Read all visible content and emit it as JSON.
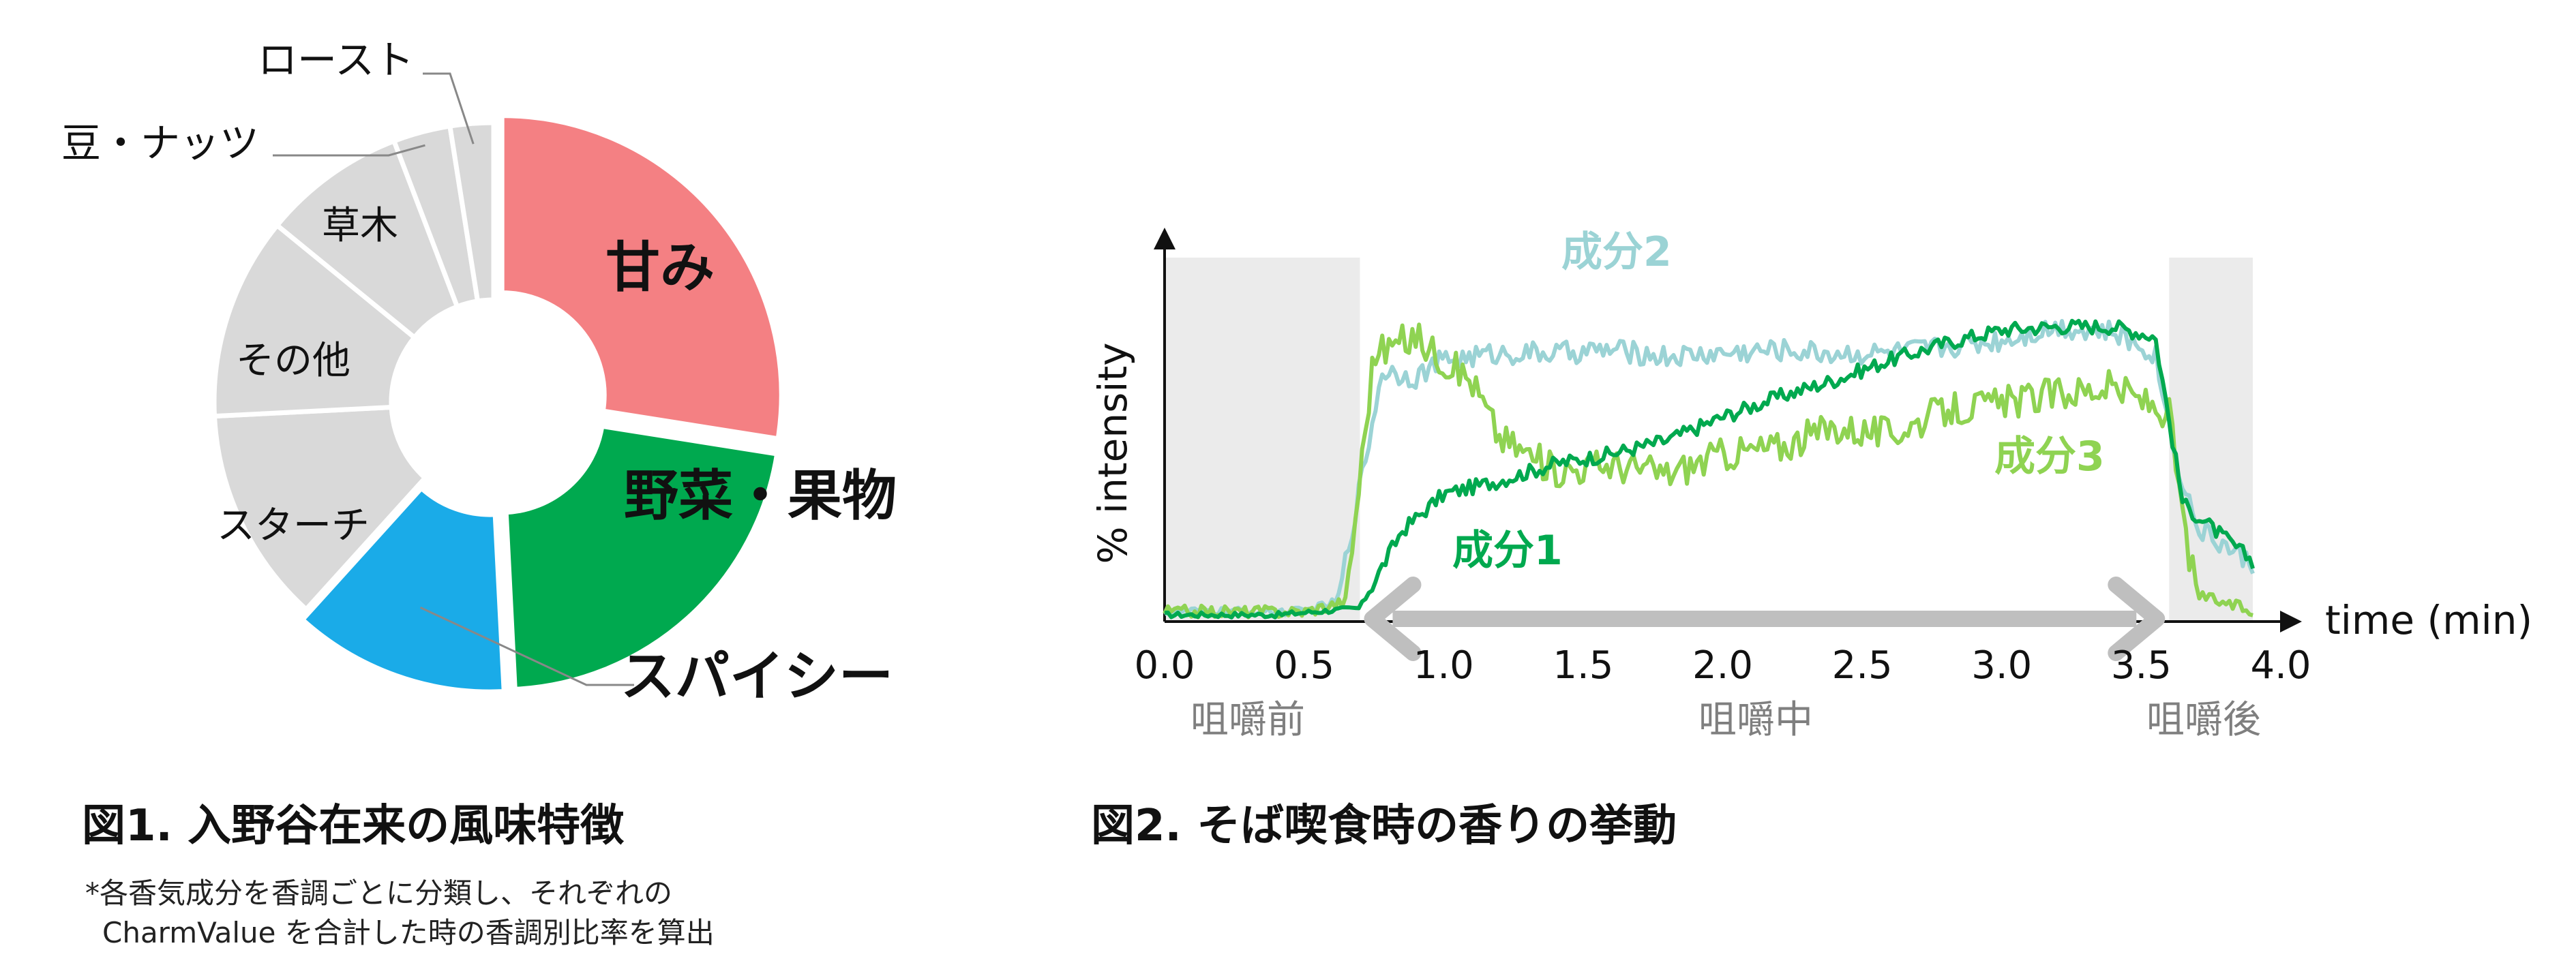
{
  "figure1": {
    "caption": "図1. 入野谷在来の風味特徴",
    "note_line1": "*各香気成分を香調ごとに分類し、それぞれの",
    "note_line2": "CharmValue を合計した時の香調別比率を算出"
  },
  "figure2": {
    "caption": "図2. そば喫食時の香りの挙動"
  },
  "colors": {
    "sweet": "#f48083",
    "veg_fruit": "#00a94f",
    "spicy": "#1aabe8",
    "grey": "#d9d9d9",
    "comp1": "#00a94f",
    "comp2": "#9bd3d5",
    "comp3": "#8fd352",
    "arrow": "#bfbfbf",
    "shade": "#ebebeb"
  },
  "chart_data": [
    {
      "type": "pie",
      "categories": [
        "甘み",
        "野菜・果物",
        "スパイシー",
        "スターチ",
        "その他",
        "草木",
        "豆・ナッツ",
        "ロースト"
      ],
      "values": [
        27.5,
        21.7,
        12.5,
        12.5,
        11.7,
        8.3,
        3.3,
        2.5
      ],
      "exploded": [
        "甘み",
        "野菜・果物",
        "スパイシー"
      ],
      "donut": true
    },
    {
      "type": "line",
      "ylabel": "% intensity",
      "xlabel": "time (min)",
      "xlim": [
        0,
        4
      ],
      "ylim": [
        0,
        100
      ],
      "xticks": [
        "0.0",
        "0.5",
        "1.0",
        "1.5",
        "2.0",
        "2.5",
        "3.0",
        "3.5",
        "4.0"
      ],
      "phases": [
        {
          "label": "咀嚼前",
          "range": [
            0,
            0.7
          ]
        },
        {
          "label": "咀嚼中",
          "range": [
            0.7,
            3.6
          ]
        },
        {
          "label": "咀嚼後",
          "range": [
            3.6,
            3.9
          ]
        }
      ],
      "series": [
        {
          "name": "成分1",
          "x": [
            0,
            0.4,
            0.7,
            0.85,
            1.0,
            1.2,
            1.4,
            1.6,
            1.8,
            2.0,
            2.2,
            2.4,
            2.6,
            2.8,
            3.0,
            3.2,
            3.4,
            3.55,
            3.65,
            3.9
          ],
          "y": [
            2,
            2,
            4,
            27,
            38,
            42,
            47,
            50,
            54,
            61,
            67,
            72,
            78,
            83,
            87,
            88,
            88,
            85,
            35,
            18
          ]
        },
        {
          "name": "成分2",
          "x": [
            0,
            0.5,
            0.62,
            0.7,
            0.78,
            0.9,
            1.0,
            1.2,
            1.4,
            1.6,
            1.8,
            2.0,
            2.2,
            2.4,
            2.6,
            2.8,
            3.0,
            3.2,
            3.4,
            3.55,
            3.62,
            3.7,
            3.9
          ],
          "y": [
            3,
            3,
            6,
            40,
            75,
            73,
            78,
            80,
            80,
            81,
            79,
            80,
            81,
            80,
            80,
            82,
            84,
            88,
            86,
            80,
            50,
            28,
            17
          ]
        },
        {
          "name": "成分3",
          "x": [
            0,
            0.5,
            0.65,
            0.75,
            0.9,
            1.0,
            1.1,
            1.2,
            1.4,
            1.6,
            1.8,
            2.0,
            2.2,
            2.4,
            2.6,
            2.8,
            3.0,
            3.2,
            3.4,
            3.5,
            3.6,
            3.65,
            3.7,
            3.9
          ],
          "y": [
            3,
            3,
            6,
            80,
            85,
            78,
            72,
            55,
            45,
            47,
            44,
            50,
            52,
            58,
            56,
            63,
            65,
            68,
            70,
            66,
            62,
            30,
            8,
            3
          ]
        }
      ]
    }
  ]
}
